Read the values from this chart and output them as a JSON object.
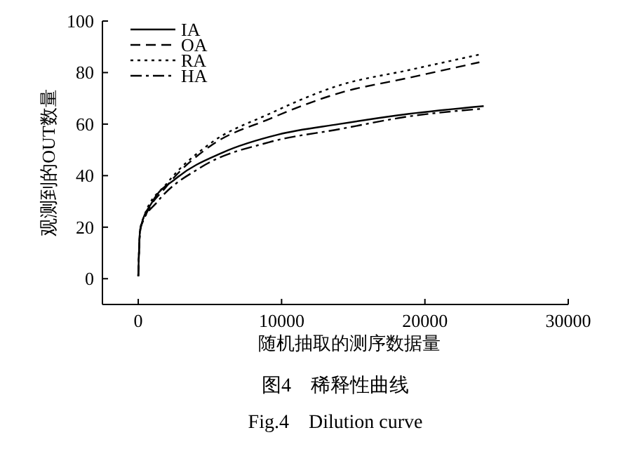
{
  "chart_data": {
    "type": "line",
    "title": "图4　稀释性曲线",
    "subtitle": "Fig.4　Dilution curve",
    "xlabel": "随机抽取的测序数据量",
    "ylabel": "观测到的OUT数量",
    "xlim": [
      -2500,
      30000
    ],
    "ylim": [
      -10,
      100
    ],
    "xticks": [
      0,
      10000,
      20000,
      30000
    ],
    "yticks": [
      0,
      20,
      40,
      60,
      80,
      100
    ],
    "grid": false,
    "legend": "top left",
    "marker": "none",
    "series": [
      {
        "name": "IA",
        "color": "#000000",
        "line_style": "solid",
        "x": [
          0,
          130,
          1000,
          2660,
          5900,
          9800,
          14000,
          18900,
          24100
        ],
        "values": [
          1,
          19,
          30,
          39,
          49,
          56,
          60,
          64,
          67
        ]
      },
      {
        "name": "OA",
        "color": "#000000",
        "line_style": "dashed",
        "x": [
          0,
          130,
          390,
          2000,
          4900,
          9150,
          14000,
          18900,
          23800
        ],
        "values": [
          1,
          19,
          23,
          36,
          51,
          62,
          72,
          78,
          84
        ]
      },
      {
        "name": "RA",
        "color": "#000000",
        "line_style": "dotted",
        "x": [
          0,
          130,
          390,
          2000,
          4900,
          9150,
          14000,
          18900,
          23800
        ],
        "values": [
          1,
          19,
          24,
          37,
          52,
          64,
          75,
          81,
          87
        ]
      },
      {
        "name": "HA",
        "color": "#000000",
        "line_style": "dashdot",
        "x": [
          0,
          100,
          230,
          1360,
          4300,
          9150,
          14000,
          18900,
          24100
        ],
        "values": [
          1,
          16,
          21,
          30,
          43,
          53,
          58,
          63,
          66
        ]
      }
    ]
  }
}
